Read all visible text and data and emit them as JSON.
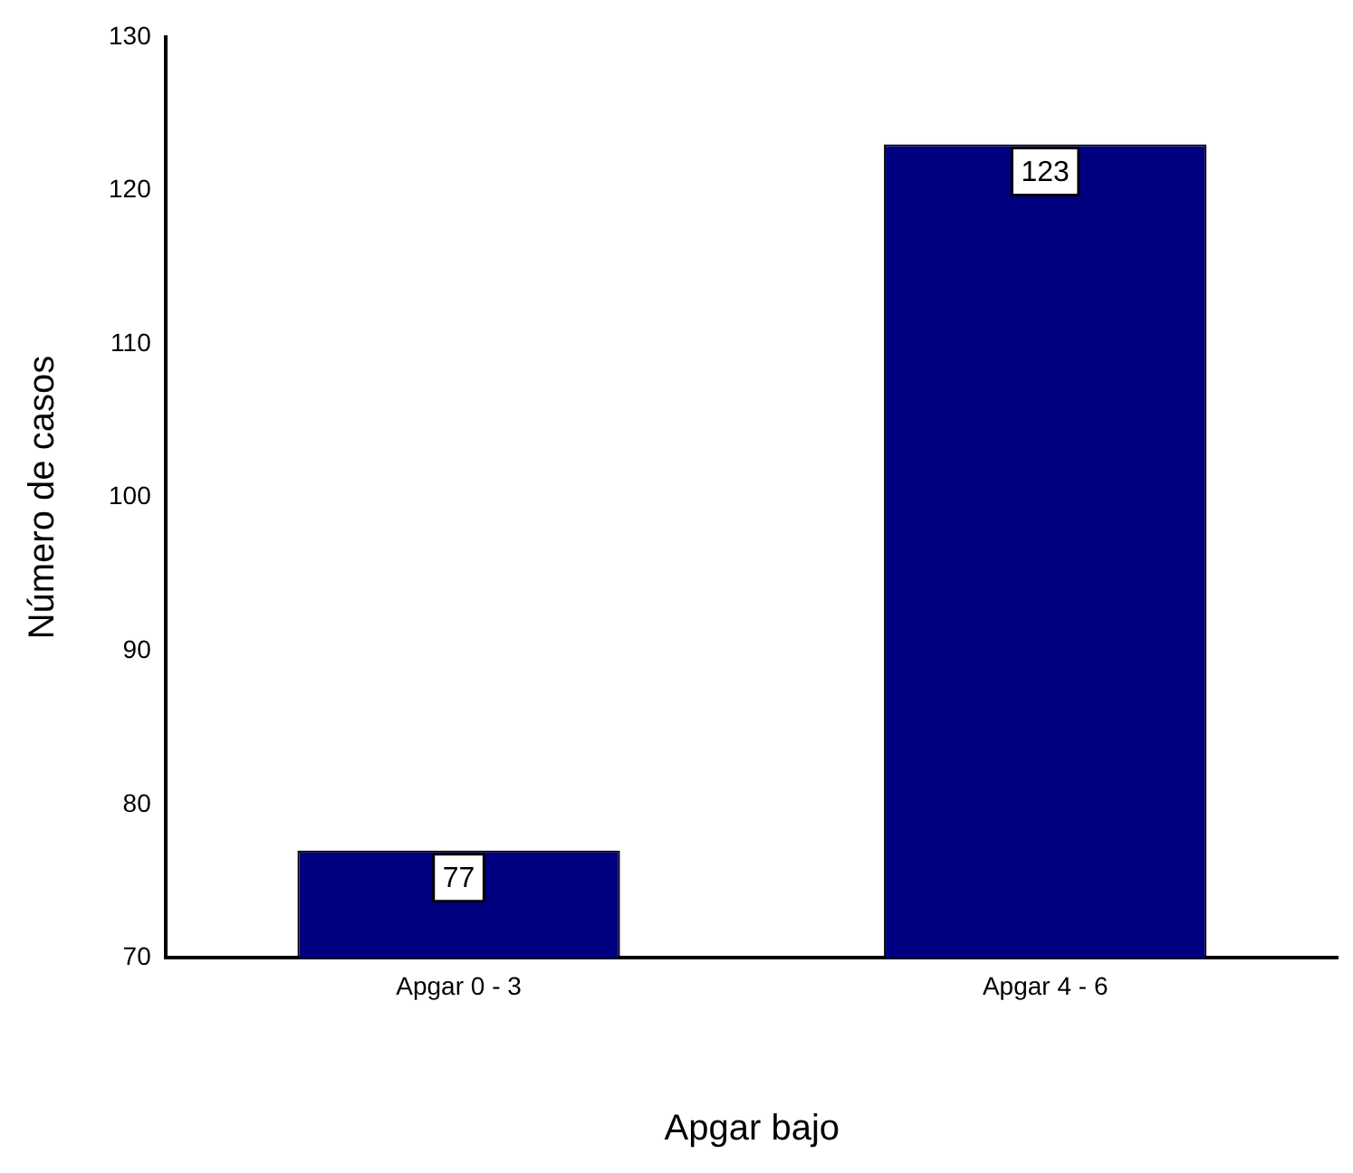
{
  "chart_data": {
    "type": "bar",
    "xlabel": "Apgar bajo",
    "ylabel": "Número de casos",
    "categories": [
      "Apgar 0 - 3",
      "Apgar 4 - 6"
    ],
    "values": [
      77,
      123
    ],
    "color": "#000080",
    "ylim": [
      70,
      130
    ],
    "yticks": [
      70,
      80,
      90,
      100,
      110,
      120,
      130
    ],
    "data_labels": true,
    "grid": false,
    "legend": false
  }
}
